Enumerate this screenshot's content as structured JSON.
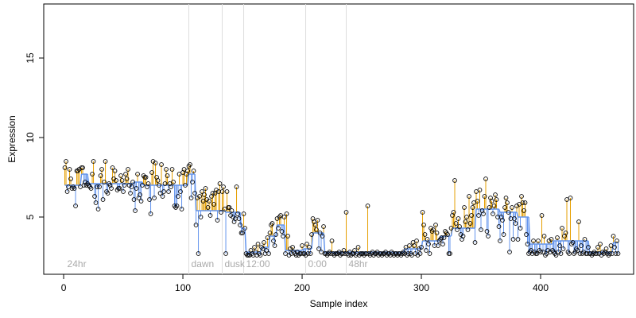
{
  "chart_data": {
    "type": "scatter",
    "xlabel": "Sample index",
    "ylabel": "Expression",
    "xlim": [
      -16.7,
      478
    ],
    "xticks": [
      0,
      100,
      200,
      300,
      400
    ],
    "ylim": [
      1.4,
      18.4
    ],
    "yticks": [
      5,
      10,
      15
    ],
    "point_color": "#000000",
    "above_color": "#e69f00",
    "below_color": "#6495ed",
    "vline_color": "#dddddd",
    "vlines": [
      105,
      133,
      151,
      203,
      237
    ],
    "annotations": [
      {
        "x": 3,
        "y": 2,
        "text": "24hr"
      },
      {
        "x": 107,
        "y": 2,
        "text": "dawn"
      },
      {
        "x": 135,
        "y": 2,
        "text": "dusk"
      },
      {
        "x": 153,
        "y": 2,
        "text": "12:00"
      },
      {
        "x": 205,
        "y": 2,
        "text": "0:00"
      },
      {
        "x": 239,
        "y": 2,
        "text": "48hr"
      }
    ],
    "segments": [
      {
        "start": 1,
        "end": 14,
        "value": 7.0
      },
      {
        "start": 15,
        "end": 20,
        "value": 7.7
      },
      {
        "start": 21,
        "end": 58,
        "value": 7.1
      },
      {
        "start": 59,
        "end": 66,
        "value": 7.2
      },
      {
        "start": 67,
        "end": 104,
        "value": 7.0
      },
      {
        "start": 105,
        "end": 110,
        "value": 7.7
      },
      {
        "start": 111,
        "end": 135,
        "value": 5.4
      },
      {
        "start": 136,
        "end": 148,
        "value": 5.3
      },
      {
        "start": 149,
        "end": 152,
        "value": 4.3
      },
      {
        "start": 153,
        "end": 165,
        "value": 2.8
      },
      {
        "start": 166,
        "end": 172,
        "value": 3.1
      },
      {
        "start": 173,
        "end": 178,
        "value": 3.8
      },
      {
        "start": 179,
        "end": 185,
        "value": 4.5
      },
      {
        "start": 186,
        "end": 200,
        "value": 2.9
      },
      {
        "start": 201,
        "end": 208,
        "value": 3.0
      },
      {
        "start": 209,
        "end": 218,
        "value": 4.0
      },
      {
        "start": 219,
        "end": 236,
        "value": 2.8
      },
      {
        "start": 237,
        "end": 285,
        "value": 2.8
      },
      {
        "start": 286,
        "end": 300,
        "value": 3.0
      },
      {
        "start": 301,
        "end": 315,
        "value": 3.5
      },
      {
        "start": 316,
        "end": 325,
        "value": 3.8
      },
      {
        "start": 326,
        "end": 345,
        "value": 4.3
      },
      {
        "start": 346,
        "end": 365,
        "value": 5.5
      },
      {
        "start": 366,
        "end": 380,
        "value": 5.3
      },
      {
        "start": 381,
        "end": 390,
        "value": 5.0
      },
      {
        "start": 391,
        "end": 410,
        "value": 3.3
      },
      {
        "start": 411,
        "end": 440,
        "value": 3.5
      },
      {
        "start": 441,
        "end": 460,
        "value": 2.8
      },
      {
        "start": 461,
        "end": 465,
        "value": 3.4
      }
    ],
    "x": [
      1,
      2,
      3,
      4,
      5,
      6,
      7,
      8,
      9,
      10,
      11,
      12,
      13,
      14,
      15,
      16,
      17,
      18,
      19,
      20,
      21,
      22,
      23,
      24,
      25,
      26,
      27,
      28,
      29,
      30,
      31,
      32,
      33,
      34,
      35,
      36,
      37,
      38,
      39,
      40,
      41,
      42,
      43,
      44,
      45,
      46,
      47,
      48,
      49,
      50,
      51,
      52,
      53,
      54,
      55,
      56,
      57,
      58,
      59,
      60,
      61,
      62,
      63,
      64,
      65,
      66,
      67,
      68,
      69,
      70,
      71,
      72,
      73,
      74,
      75,
      76,
      77,
      78,
      79,
      80,
      81,
      82,
      83,
      84,
      85,
      86,
      87,
      88,
      89,
      90,
      91,
      92,
      93,
      94,
      95,
      96,
      97,
      98,
      99,
      100,
      101,
      102,
      103,
      104,
      105,
      106,
      107,
      108,
      109,
      110,
      111,
      112,
      113,
      114,
      115,
      116,
      117,
      118,
      119,
      120,
      121,
      122,
      123,
      124,
      125,
      126,
      127,
      128,
      129,
      130,
      131,
      132,
      133,
      134,
      135,
      136,
      137,
      138,
      139,
      140,
      141,
      142,
      143,
      144,
      145,
      146,
      147,
      148,
      149,
      150,
      151,
      152,
      153,
      154,
      155,
      156,
      157,
      158,
      159,
      160,
      161,
      162,
      163,
      164,
      165,
      166,
      167,
      168,
      169,
      170,
      171,
      172,
      173,
      174,
      175,
      176,
      177,
      178,
      179,
      180,
      181,
      182,
      183,
      184,
      185,
      186,
      187,
      188,
      189,
      190,
      191,
      192,
      193,
      194,
      195,
      196,
      197,
      198,
      199,
      200,
      201,
      202,
      203,
      204,
      205,
      206,
      207,
      208,
      209,
      210,
      211,
      212,
      213,
      214,
      215,
      216,
      217,
      218,
      219,
      220,
      221,
      222,
      223,
      224,
      225,
      226,
      227,
      228,
      229,
      230,
      231,
      232,
      233,
      234,
      235,
      236,
      237,
      238,
      239,
      240,
      241,
      242,
      243,
      244,
      245,
      246,
      247,
      248,
      249,
      250,
      251,
      252,
      253,
      254,
      255,
      256,
      257,
      258,
      259,
      260,
      261,
      262,
      263,
      264,
      265,
      266,
      267,
      268,
      269,
      270,
      271,
      272,
      273,
      274,
      275,
      276,
      277,
      278,
      279,
      280,
      281,
      282,
      283,
      284,
      285,
      286,
      287,
      288,
      289,
      290,
      291,
      292,
      293,
      294,
      295,
      296,
      297,
      298,
      299,
      300,
      301,
      302,
      303,
      304,
      305,
      306,
      307,
      308,
      309,
      310,
      311,
      312,
      313,
      314,
      315,
      316,
      317,
      318,
      319,
      320,
      321,
      322,
      323,
      324,
      325,
      326,
      327,
      328,
      329,
      330,
      331,
      332,
      333,
      334,
      335,
      336,
      337,
      338,
      339,
      340,
      341,
      342,
      343,
      344,
      345,
      346,
      347,
      348,
      349,
      350,
      351,
      352,
      353,
      354,
      355,
      356,
      357,
      358,
      359,
      360,
      361,
      362,
      363,
      364,
      365,
      366,
      367,
      368,
      369,
      370,
      371,
      372,
      373,
      374,
      375,
      376,
      377,
      378,
      379,
      380,
      381,
      382,
      383,
      384,
      385,
      386,
      387,
      388,
      389,
      390,
      391,
      392,
      393,
      394,
      395,
      396,
      397,
      398,
      399,
      400,
      401,
      402,
      403,
      404,
      405,
      406,
      407,
      408,
      409,
      410,
      411,
      412,
      413,
      414,
      415,
      416,
      417,
      418,
      419,
      420,
      421,
      422,
      423,
      424,
      425,
      426,
      427,
      428,
      429,
      430,
      431,
      432,
      433,
      434,
      435,
      436,
      437,
      438,
      439,
      440,
      441,
      442,
      443,
      444,
      445,
      446,
      447,
      448,
      449,
      450,
      451,
      452,
      453,
      454,
      455,
      456,
      457,
      458,
      459,
      460,
      461,
      462,
      463,
      464,
      465
    ],
    "values": [
      8.1,
      8.5,
      6.6,
      6.9,
      8.0,
      7.4,
      6.8,
      6.9,
      6.8,
      5.7,
      7.9,
      7.9,
      8.0,
      6.9,
      8.1,
      8.1,
      7.0,
      7.2,
      7.0,
      7.1,
      7.0,
      6.9,
      6.8,
      7.7,
      8.5,
      6.3,
      5.9,
      6.9,
      5.5,
      6.9,
      7.6,
      8.0,
      6.1,
      7.2,
      8.5,
      6.6,
      6.5,
      7.1,
      7.0,
      6.8,
      8.1,
      7.4,
      7.9,
      7.3,
      6.7,
      6.8,
      6.8,
      7.6,
      7.3,
      6.6,
      7.0,
      7.7,
      7.4,
      8.0,
      7.0,
      6.5,
      6.9,
      7.2,
      6.1,
      5.4,
      6.8,
      7.7,
      6.2,
      6.4,
      6.0,
      7.0,
      7.6,
      7.5,
      7.5,
      6.9,
      7.1,
      6.1,
      5.2,
      7.8,
      8.5,
      6.2,
      8.4,
      7.5,
      7.3,
      7.0,
      6.5,
      8.3,
      6.3,
      6.6,
      7.1,
      8.0,
      7.6,
      6.6,
      7.1,
      6.9,
      8.0,
      7.2,
      5.7,
      5.6,
      5.7,
      6.3,
      7.7,
      6.6,
      5.5,
      7.8,
      8.0,
      7.0,
      7.7,
      7.9,
      8.2,
      8.3,
      6.2,
      7.2,
      7.9,
      6.5,
      4.5,
      6.2,
      2.7,
      6.3,
      5.0,
      6.6,
      6.0,
      6.4,
      6.8,
      6.1,
      5.6,
      6.0,
      5.1,
      6.3,
      6.5,
      5.8,
      6.5,
      6.7,
      4.8,
      6.6,
      7.1,
      5.3,
      6.6,
      6.9,
      5.5,
      2.7,
      6.6,
      5.6,
      5.6,
      5.1,
      5.4,
      5.0,
      4.7,
      4.9,
      6.9,
      5.2,
      4.9,
      4.5,
      4.0,
      4.0,
      5.2,
      4.3,
      2.7,
      2.6,
      2.6,
      2.6,
      2.9,
      2.7,
      2.6,
      3.1,
      2.8,
      2.6,
      3.3,
      2.7,
      2.6,
      3.1,
      3.0,
      3.4,
      2.7,
      2.9,
      3.7,
      2.7,
      4.0,
      4.5,
      4.6,
      3.5,
      3.2,
      3.9,
      4.9,
      4.3,
      5.0,
      5.1,
      4.1,
      3.8,
      5.0,
      2.7,
      5.2,
      3.8,
      2.6,
      3.0,
      2.7,
      3.1,
      2.8,
      2.7,
      2.6,
      2.8,
      2.6,
      2.7,
      2.7,
      3.2,
      2.7,
      2.7,
      2.6,
      3.3,
      2.7,
      3.1,
      2.7,
      3.9,
      4.9,
      4.7,
      4.5,
      4.2,
      4.8,
      3.0,
      4.0,
      2.8,
      3.8,
      4.4,
      2.7,
      2.7,
      2.6,
      2.7,
      2.8,
      2.7,
      3.5,
      2.7,
      2.6,
      2.7,
      2.7,
      2.7,
      2.8,
      2.6,
      2.7,
      2.7,
      2.9,
      2.7,
      5.3,
      2.7,
      2.6,
      2.8,
      2.6,
      2.7,
      2.7,
      2.9,
      2.6,
      2.7,
      3.1,
      2.6,
      2.7,
      2.7,
      2.7,
      2.6,
      2.7,
      2.7,
      5.7,
      2.7,
      2.6,
      2.7,
      2.8,
      2.6,
      2.7,
      2.7,
      2.8,
      2.6,
      2.7,
      2.7,
      2.6,
      2.7,
      2.7,
      2.8,
      2.6,
      2.7,
      2.7,
      2.6,
      2.8,
      2.7,
      2.6,
      2.7,
      2.7,
      2.6,
      2.7,
      2.7,
      2.6,
      2.7,
      2.8,
      2.7,
      3.1,
      2.6,
      2.7,
      3.2,
      2.7,
      2.6,
      3.4,
      3.2,
      2.7,
      3.5,
      2.6,
      3.0,
      2.7,
      3.1,
      5.3,
      4.5,
      3.9,
      2.9,
      3.6,
      3.3,
      2.7,
      4.3,
      4.1,
      4.2,
      3.2,
      4.5,
      4.0,
      3.2,
      3.5,
      3.6,
      3.7,
      3.3,
      3.7,
      4.1,
      4.0,
      3.9,
      2.7,
      2.7,
      4.3,
      5.1,
      5.3,
      7.3,
      4.6,
      4.2,
      4.9,
      4.4,
      3.9,
      3.6,
      3.8,
      5.6,
      4.7,
      5.0,
      4.2,
      6.3,
      4.6,
      5.1,
      5.6,
      5.9,
      3.4,
      6.6,
      6.0,
      5.1,
      6.7,
      4.2,
      5.4,
      5.2,
      6.3,
      7.4,
      4.1,
      3.8,
      5.6,
      6.2,
      6.0,
      5.2,
      5.7,
      6.4,
      6.1,
      5.0,
      4.4,
      3.5,
      5.0,
      4.8,
      3.9,
      5.6,
      6.2,
      5.9,
      5.3,
      2.8,
      4.9,
      5.6,
      3.6,
      4.9,
      4.6,
      5.7,
      3.6,
      5.8,
      4.3,
      6.3,
      5.9,
      5.4,
      5.9,
      3.9,
      3.3,
      2.7,
      2.8,
      2.9,
      2.7,
      3.5,
      2.8,
      2.7,
      2.7,
      3.5,
      2.9,
      2.8,
      5.1,
      2.8,
      3.8,
      2.6,
      2.7,
      2.9,
      3.5,
      2.8,
      3.6,
      2.9,
      2.8,
      2.7,
      2.6,
      3.7,
      2.8,
      3.2,
      2.7,
      4.3,
      3.0,
      3.8,
      4.0,
      6.1,
      2.8,
      2.7,
      6.2,
      3.3,
      3.4,
      2.7,
      2.8,
      3.0,
      2.9,
      4.7,
      2.7,
      3.2,
      2.7,
      2.8,
      3.6,
      2.7,
      2.7,
      3.1,
      2.7,
      2.7,
      2.6,
      2.7,
      2.8,
      2.7,
      2.7,
      3.1,
      2.7,
      3.3,
      2.6,
      2.8,
      2.7,
      2.8,
      3.0,
      2.7,
      2.6,
      2.7,
      3.2,
      2.7,
      3.8,
      3.1,
      2.7,
      3.5,
      2.7
    ]
  }
}
